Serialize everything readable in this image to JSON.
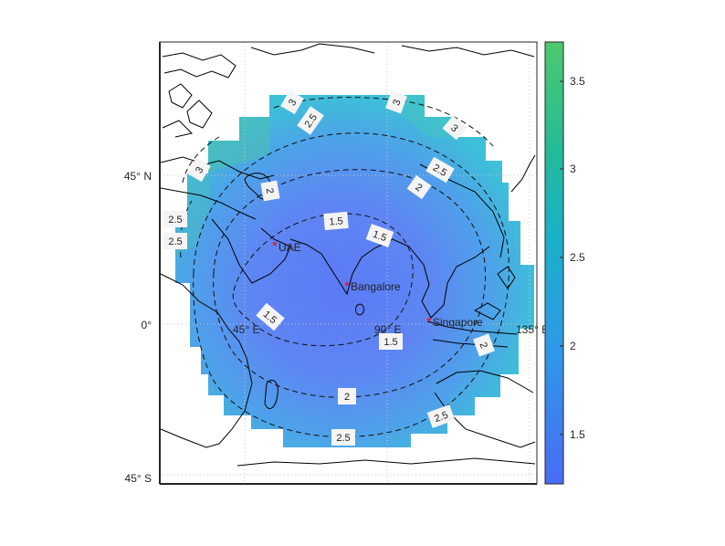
{
  "chart_data": {
    "type": "heatmap",
    "title": "",
    "lat_ticks": [
      "45° N",
      "0°",
      "45° S"
    ],
    "lon_ticks": [
      "45° E",
      "90° E",
      "135° E"
    ],
    "colorbar": {
      "ticks": [
        "3.5",
        "3",
        "2.5",
        "2",
        "1.5"
      ],
      "range": [
        1.2,
        3.7
      ],
      "colormap": [
        "#4a6cf5",
        "#2f98e8",
        "#1ab0c8",
        "#22bb9a",
        "#4fc86e"
      ]
    },
    "cities": [
      {
        "name": "UAE",
        "lat": 24,
        "lon": 54
      },
      {
        "name": "Bangalore",
        "lat": 13,
        "lon": 77.5
      },
      {
        "name": "Singapore",
        "lat": 1.3,
        "lon": 103.8
      }
    ],
    "contour_labels": [
      "1.5",
      "1.5",
      "1.5",
      "1.5",
      "2",
      "2",
      "2",
      "2",
      "2.5",
      "2.5",
      "2.5",
      "2.5",
      "2.5",
      "2.5",
      "3",
      "3",
      "3",
      "3"
    ],
    "marker_color": "#ff0000"
  }
}
